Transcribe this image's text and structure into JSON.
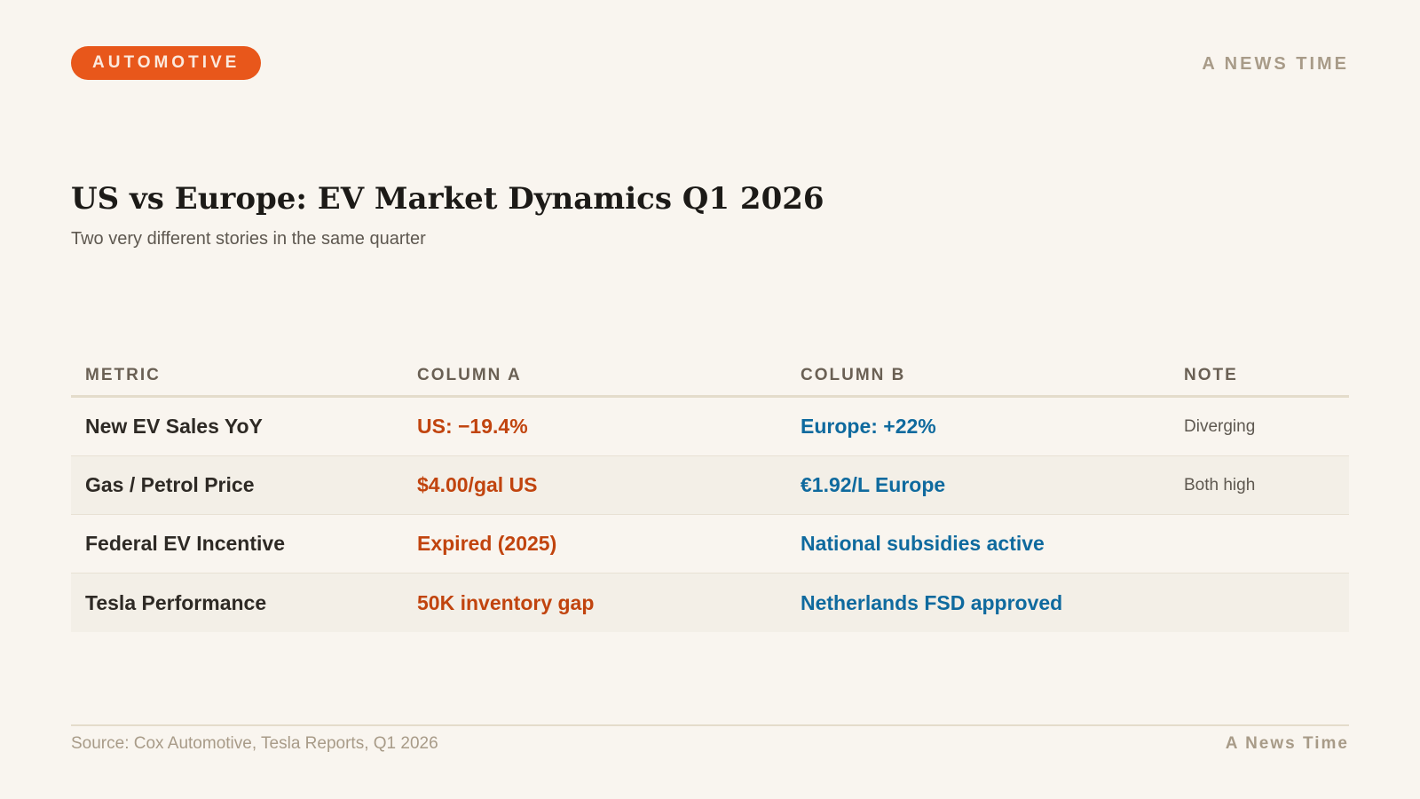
{
  "badge": {
    "label": "AUTOMOTIVE",
    "color": "#e8571b"
  },
  "brand": {
    "top": "A NEWS TIME",
    "bottom": "A News Time"
  },
  "header": {
    "title": "US vs Europe: EV Market Dynamics Q1 2026",
    "subtitle": "Two very different stories in the same quarter"
  },
  "table": {
    "headers": [
      "METRIC",
      "COLUMN A",
      "COLUMN B",
      "NOTE"
    ],
    "rows": [
      {
        "metric": "New EV Sales YoY",
        "a": "US: −19.4%",
        "b": "Europe: +22%",
        "note": "Diverging"
      },
      {
        "metric": "Gas / Petrol Price",
        "a": "$4.00/gal US",
        "b": "€1.92/L Europe",
        "note": "Both high"
      },
      {
        "metric": "Federal EV Incentive",
        "a": "Expired (2025)",
        "b": "National subsidies active",
        "note": ""
      },
      {
        "metric": "Tesla Performance",
        "a": "50K inventory gap",
        "b": "Netherlands FSD approved",
        "note": ""
      }
    ],
    "colors": {
      "column_a": "#c1440e",
      "column_b": "#0f6a9e"
    }
  },
  "footer": {
    "source": "Source: Cox Automotive, Tesla Reports, Q1 2026"
  }
}
